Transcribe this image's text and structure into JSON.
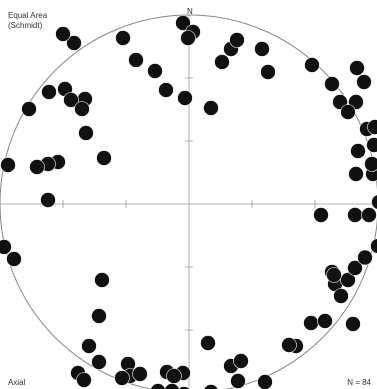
{
  "header": {
    "projection_title": "Equal Area",
    "projection_subtitle": "(Schmidt)",
    "north_label": "N"
  },
  "footer": {
    "plot_kind": "Axial",
    "count_label": "N = 84"
  },
  "style": {
    "pole_color": "#111111",
    "line_color": "#888888",
    "background": "#ffffff"
  },
  "poles": [
    [
      -0.0317,
      0.9577
    ],
    [
      0.0212,
      0.9101
    ],
    [
      -0.2804,
      0.7619
    ],
    [
      -0.1799,
      0.7037
    ],
    [
      -0.1217,
      0.6032
    ],
    [
      -0.0212,
      0.5608
    ],
    [
      0.1164,
      0.5079
    ],
    [
      0.2222,
      0.8201
    ],
    [
      0.3862,
      0.8201
    ],
    [
      0.418,
      0.6984
    ],
    [
      0.6508,
      0.7354
    ],
    [
      0.7566,
      0.6349
    ],
    [
      0.9418,
      0.3968
    ],
    [
      0.6984,
      -0.0582
    ],
    [
      -0.4603,
      -0.4021
    ],
    [
      -0.0053,
      0.8783
    ],
    [
      0.254,
      0.8677
    ],
    [
      0.8889,
      0.7196
    ],
    [
      0.9259,
      0.6455
    ],
    [
      0.7989,
      0.5397
    ],
    [
      0.8942,
      0.2804
    ],
    [
      0.1746,
      0.7513
    ],
    [
      0.8836,
      0.5397
    ],
    [
      0.8413,
      0.4868
    ],
    [
      0.9841,
      0.4074
    ],
    [
      0.8836,
      0.1587
    ],
    [
      0.9735,
      0.1587
    ],
    [
      0.9683,
      0.2116
    ],
    [
      0.9788,
      0.3122
    ],
    [
      -0.3492,
      0.8783
    ],
    [
      -0.6085,
      0.8519
    ],
    [
      -0.6667,
      0.8995
    ],
    [
      -0.6561,
      0.6085
    ],
    [
      -0.7407,
      0.5926
    ],
    [
      -0.5503,
      0.5556
    ],
    [
      -0.6243,
      0.5503
    ],
    [
      -0.5661,
      0.5026
    ],
    [
      -0.8466,
      0.5026
    ],
    [
      -0.545,
      0.3757
    ],
    [
      -0.6931,
      0.2222
    ],
    [
      -0.746,
      0.2116
    ],
    [
      -0.8042,
      0.1958
    ],
    [
      -0.4497,
      0.2434
    ],
    [
      -0.9577,
      0.2063
    ],
    [
      -0.746,
      0.0212
    ],
    [
      -0.9788,
      -0.2275
    ],
    [
      -0.9259,
      -0.291
    ],
    [
      -0.4762,
      -0.5926
    ],
    [
      -0.5291,
      -0.7513
    ],
    [
      -0.4762,
      -0.836
    ],
    [
      -0.5873,
      -0.8942
    ],
    [
      -0.5556,
      -0.9312
    ],
    [
      -0.3228,
      -0.8466
    ],
    [
      -0.3122,
      -0.9101
    ],
    [
      -0.3545,
      -0.9206
    ],
    [
      -0.1164,
      -0.8889
    ],
    [
      -0.0265,
      -1.0053
    ],
    [
      -0.0317,
      -0.8942
    ],
    [
      0.1005,
      -0.7354
    ],
    [
      -0.0794,
      -0.9101
    ],
    [
      -0.164,
      -0.9894
    ],
    [
      -0.2593,
      -0.8995
    ],
    [
      0.1164,
      -0.9947
    ],
    [
      0.2222,
      -0.8571
    ],
    [
      0.2593,
      -0.9365
    ],
    [
      0.2751,
      -0.8307
    ],
    [
      0.4021,
      -0.9418
    ],
    [
      0.5661,
      -0.7513
    ],
    [
      0.6455,
      -0.6296
    ],
    [
      0.7725,
      -0.4233
    ],
    [
      0.8413,
      -0.4021
    ],
    [
      0.7566,
      -0.3598
    ],
    [
      0.8677,
      -0.6349
    ],
    [
      0.8042,
      -0.4868
    ],
    [
      1.0053,
      0.0106
    ],
    [
      0.8783,
      -0.0582
    ],
    [
      0.9524,
      -0.0582
    ],
    [
      1.0,
      -0.2222
    ],
    [
      0.8783,
      -0.3386
    ],
    [
      0.9312,
      -0.2831
    ],
    [
      0.7196,
      -0.619
    ],
    [
      0.5291,
      -0.746
    ],
    [
      0.7672,
      -0.3757
    ],
    [
      -0.0899,
      -0.9894
    ]
  ]
}
